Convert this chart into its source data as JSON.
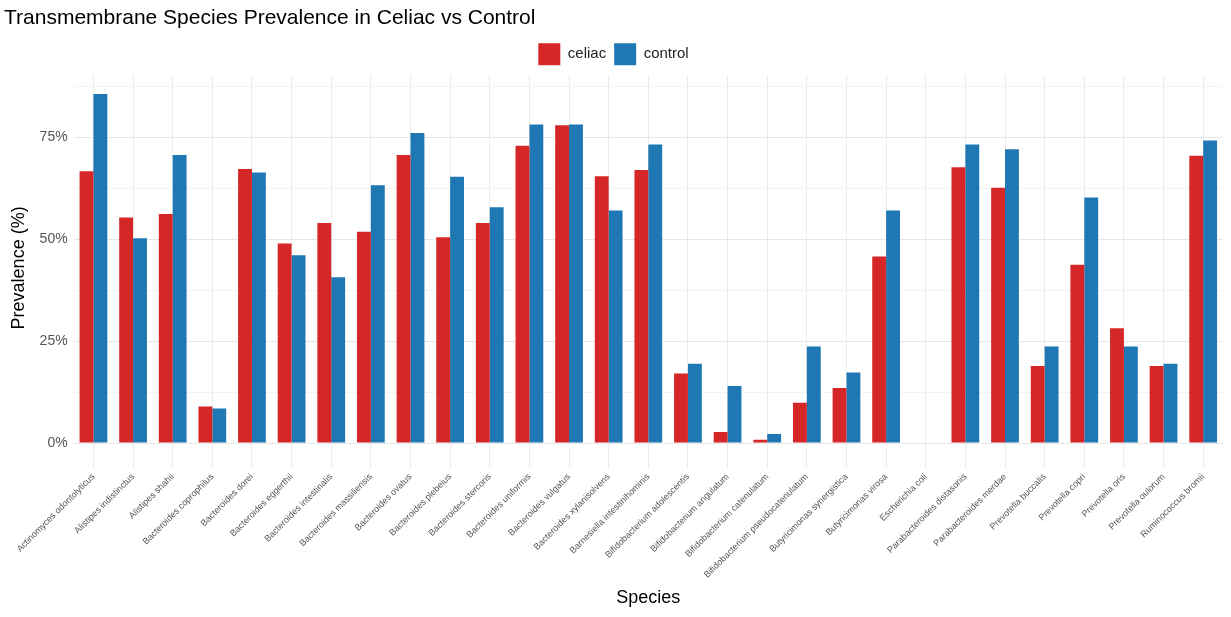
{
  "chart_data": {
    "type": "bar",
    "title": "Transmembrane Species Prevalence in Celiac vs Control",
    "xlabel": "Species",
    "ylabel": "Prevalence (%)",
    "categories": [
      "Actinomyces odontolyticus",
      "Alistipes indistinctus",
      "Alistipes shahii",
      "Bacteroides coprophilus",
      "Bacteroides dorei",
      "Bacteroides eggerthii",
      "Bacteroides intestinalis",
      "Bacteroides massiliensis",
      "Bacteroides ovatus",
      "Bacteroides plebeius",
      "Bacteroides stercoris",
      "Bacteroides uniformis",
      "Bacteroides vulgatus",
      "Bacteroides xylanisolvens",
      "Barnesiella intestinihominis",
      "Bifidobacterium adolescentis",
      "Bifidobacterium angulatum",
      "Bifidobacterium catenulatum",
      "Bifidobacterium pseudocatenulatum",
      "Butyricimonas synergistica",
      "Butyricimonas virosa",
      "Escherichia coli",
      "Parabacteroides distasonis",
      "Parabacteroides merdae",
      "Prevotella buccalis",
      "Prevotella copri",
      "Prevotella oris",
      "Prevotella oulorum",
      "Ruminococcus bromii"
    ],
    "series": [
      {
        "name": "celiac",
        "color": "#d62728",
        "values": [
          66.7,
          55.4,
          56.2,
          9.0,
          67.3,
          49.0,
          54.0,
          51.9,
          70.7,
          50.5,
          54.0,
          73.0,
          78.0,
          65.5,
          67.0,
          17.1,
          2.7,
          0.8,
          9.9,
          13.5,
          45.8,
          0,
          67.7,
          62.7,
          18.9,
          43.8,
          28.2,
          18.9,
          70.5
        ]
      },
      {
        "name": "control",
        "color": "#1f77b4",
        "values": [
          85.7,
          50.3,
          70.7,
          8.5,
          66.4,
          46.1,
          40.7,
          63.3,
          76.1,
          65.4,
          57.9,
          78.2,
          78.2,
          57.1,
          73.3,
          19.5,
          14.0,
          2.2,
          23.7,
          17.3,
          57.1,
          0,
          73.3,
          72.1,
          23.7,
          60.3,
          23.7,
          19.5,
          74.3
        ]
      }
    ],
    "ylim": [
      -4.3,
      90.3
    ],
    "yticks": [
      {
        "value": 0,
        "label": "0%"
      },
      {
        "value": 12.5,
        "label": null
      },
      {
        "value": 25,
        "label": "25%"
      },
      {
        "value": 37.5,
        "label": null
      },
      {
        "value": 50,
        "label": "50%"
      },
      {
        "value": 62.5,
        "label": null
      },
      {
        "value": 75,
        "label": "75%"
      },
      {
        "value": 87.5,
        "label": null
      }
    ],
    "grid": true,
    "legend": "top"
  }
}
